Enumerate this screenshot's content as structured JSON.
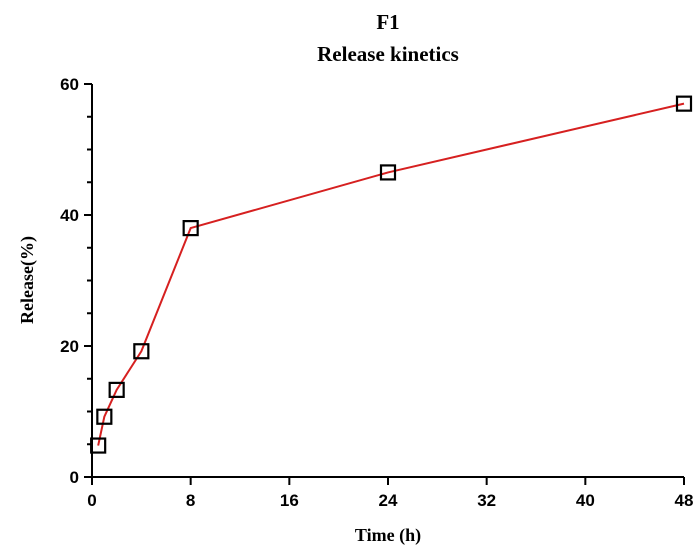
{
  "chart_data": {
    "type": "line",
    "title": "F1",
    "subtitle": "Release kinetics",
    "xlabel": "Time (h)",
    "ylabel": "Release(%)",
    "xlim": [
      0,
      48
    ],
    "ylim": [
      0,
      60
    ],
    "xticks": [
      0,
      8,
      16,
      24,
      32,
      40,
      48
    ],
    "yticks": [
      0,
      20,
      40,
      60
    ],
    "y_minor_step": 5,
    "grid": false,
    "series": [
      {
        "line_color": "#d62020",
        "marker": "open-square",
        "marker_color": "#000000",
        "x": [
          0.5,
          1,
          2,
          4,
          8,
          24,
          48
        ],
        "y": [
          4.8,
          9.2,
          13.3,
          19.2,
          38.0,
          46.5,
          57.0
        ]
      }
    ]
  }
}
